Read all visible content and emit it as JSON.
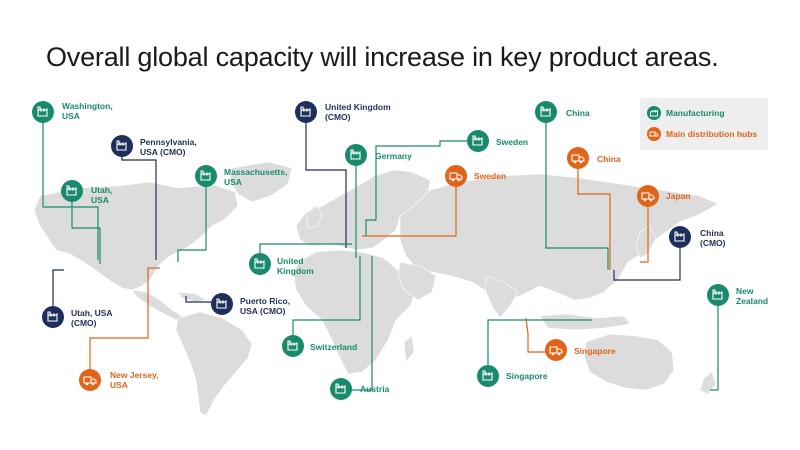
{
  "title": "Overall global capacity will increase in key product areas.",
  "colors": {
    "manufacturing": "#1a8a6e",
    "cmo": "#1f2f5c",
    "distribution": "#e0641a",
    "land": "#dcdcdc",
    "legend_bg": "#eeeeee"
  },
  "legend": {
    "manufacturing": "Manufacturing",
    "distribution": "Main distribution hubs"
  },
  "sites": [
    {
      "id": "washington",
      "type": "manufacturing",
      "icon": "factory-icon",
      "line1": "Washington,",
      "line2": "USA"
    },
    {
      "id": "pennsylvania",
      "type": "cmo",
      "icon": "factory-icon",
      "line1": "Pennsylvania,",
      "line2": "USA (CMO)"
    },
    {
      "id": "utah",
      "type": "manufacturing",
      "icon": "factory-icon",
      "line1": "Utah,",
      "line2": "USA"
    },
    {
      "id": "massachusetts",
      "type": "manufacturing",
      "icon": "factory-icon",
      "line1": "Massachusetts,",
      "line2": "USA"
    },
    {
      "id": "utah-cmo",
      "type": "cmo",
      "icon": "factory-icon",
      "line1": "Utah, USA",
      "line2": "(CMO)"
    },
    {
      "id": "puerto-rico",
      "type": "cmo",
      "icon": "factory-icon",
      "line1": "Puerto Rico,",
      "line2": "USA (CMO)"
    },
    {
      "id": "new-jersey",
      "type": "distribution",
      "icon": "truck-icon",
      "line1": "New Jersey,",
      "line2": "USA"
    },
    {
      "id": "uk-cmo",
      "type": "cmo",
      "icon": "factory-icon",
      "line1": "United Kingdom",
      "line2": "(CMO)"
    },
    {
      "id": "germany",
      "type": "manufacturing",
      "icon": "factory-icon",
      "line1": "Germany",
      "line2": ""
    },
    {
      "id": "sweden-mfg",
      "type": "manufacturing",
      "icon": "factory-icon",
      "line1": "Sweden",
      "line2": ""
    },
    {
      "id": "sweden-dist",
      "type": "distribution",
      "icon": "truck-icon",
      "line1": "Sweden",
      "line2": ""
    },
    {
      "id": "uk",
      "type": "manufacturing",
      "icon": "factory-icon",
      "line1": "United",
      "line2": "Kingdom"
    },
    {
      "id": "switzerland",
      "type": "manufacturing",
      "icon": "factory-icon",
      "line1": "Switzerland",
      "line2": ""
    },
    {
      "id": "austria",
      "type": "manufacturing",
      "icon": "factory-icon",
      "line1": "Austria",
      "line2": ""
    },
    {
      "id": "china",
      "type": "manufacturing",
      "icon": "factory-icon",
      "line1": "China",
      "line2": ""
    },
    {
      "id": "china-dist",
      "type": "distribution",
      "icon": "truck-icon",
      "line1": "China",
      "line2": ""
    },
    {
      "id": "japan",
      "type": "distribution",
      "icon": "truck-icon",
      "line1": "Japan",
      "line2": ""
    },
    {
      "id": "china-cmo",
      "type": "cmo",
      "icon": "factory-icon",
      "line1": "China",
      "line2": "(CMO)"
    },
    {
      "id": "new-zealand",
      "type": "manufacturing",
      "icon": "factory-icon",
      "line1": "New",
      "line2": "Zealand"
    },
    {
      "id": "singapore-dist",
      "type": "distribution",
      "icon": "truck-icon",
      "line1": "Singapore",
      "line2": ""
    },
    {
      "id": "singapore",
      "type": "manufacturing",
      "icon": "factory-icon",
      "line1": "Singapore",
      "line2": ""
    }
  ]
}
